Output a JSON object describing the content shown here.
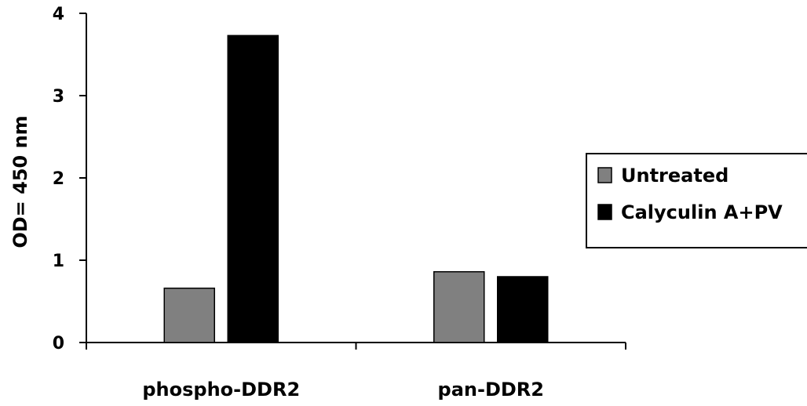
{
  "chart_data": {
    "type": "bar",
    "title": "",
    "xlabel": "",
    "ylabel": "OD= 450 nm",
    "ylim": [
      0,
      4
    ],
    "yticks": [
      0,
      1,
      2,
      3,
      4
    ],
    "categories": [
      "phospho-DDR2",
      "pan-DDR2"
    ],
    "series": [
      {
        "name": "Untreated",
        "values": [
          0.66,
          0.86
        ],
        "color": "#808080"
      },
      {
        "name": "Calyculin A+PV",
        "values": [
          3.73,
          0.8
        ],
        "color": "#000000"
      }
    ],
    "legend_position": "right",
    "grid": false
  }
}
